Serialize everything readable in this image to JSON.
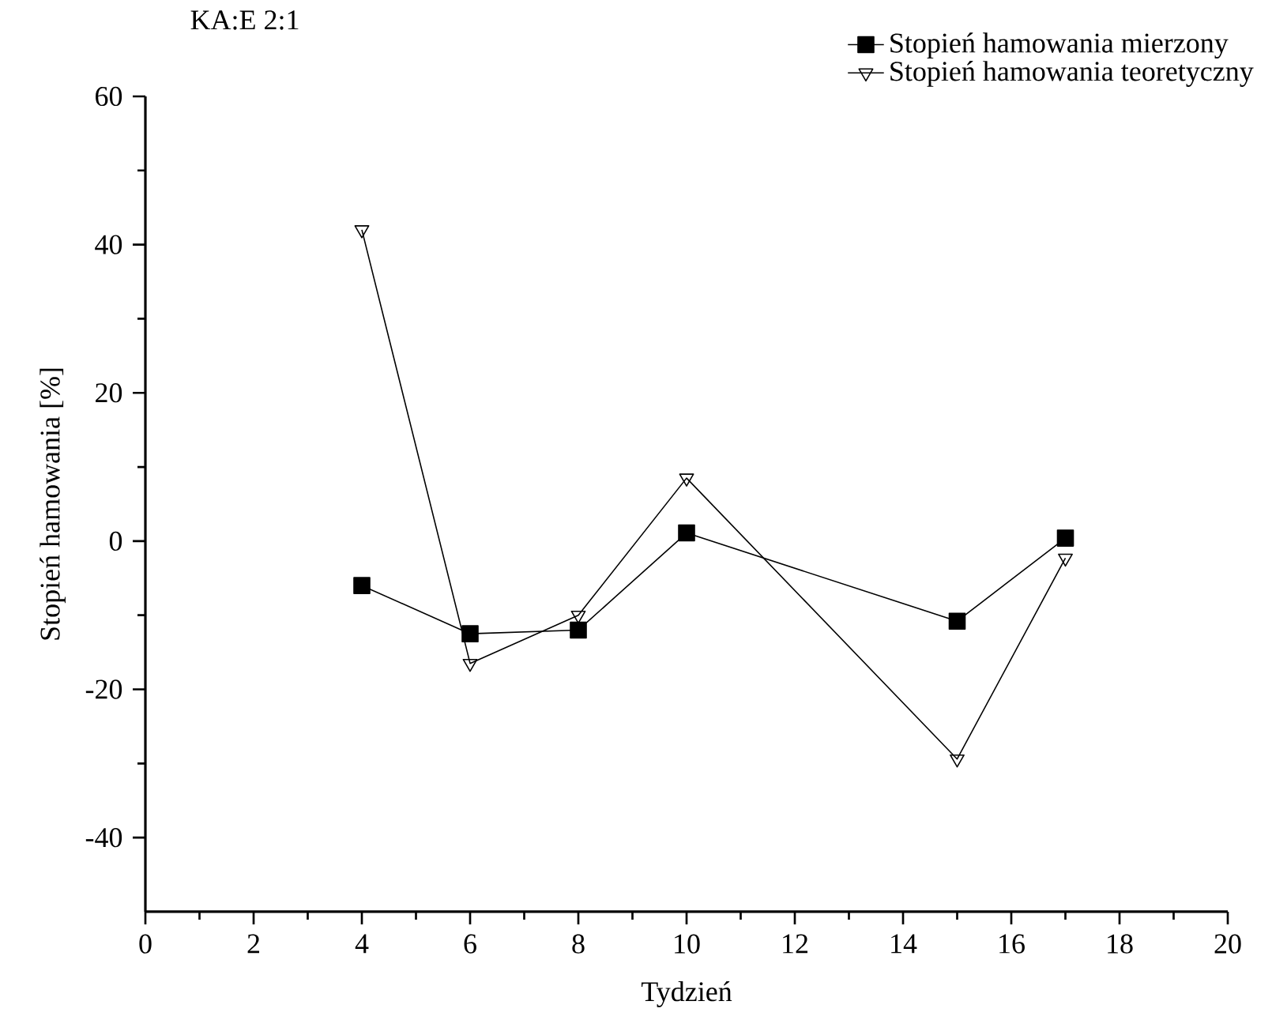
{
  "chart_data": {
    "type": "line",
    "title": "KA:E 2:1",
    "xlabel": "Tydzień",
    "ylabel": "Stopień hamowania [%]",
    "x": [
      4,
      6,
      8,
      10,
      15,
      17
    ],
    "series": [
      {
        "name": "Stopień hamowania mierzony",
        "color": "#000000",
        "marker": "square",
        "values": [
          -6,
          -12.5,
          -12,
          1.1,
          -10.8,
          0.4
        ]
      },
      {
        "name": "Stopień hamowania teoretyczny",
        "color": "#000000",
        "marker": "triangle",
        "values": [
          42,
          -16.5,
          -10,
          8.5,
          -29.4,
          -2.3
        ]
      }
    ],
    "xlim": [
      0,
      20
    ],
    "ylim": [
      -50,
      60
    ],
    "xticks": [
      0,
      2,
      4,
      6,
      8,
      10,
      12,
      14,
      16,
      18,
      20
    ],
    "yticks": [
      -40,
      -20,
      0,
      20,
      40,
      60
    ],
    "grid": false,
    "legend": "top right",
    "line_style": "solid"
  }
}
